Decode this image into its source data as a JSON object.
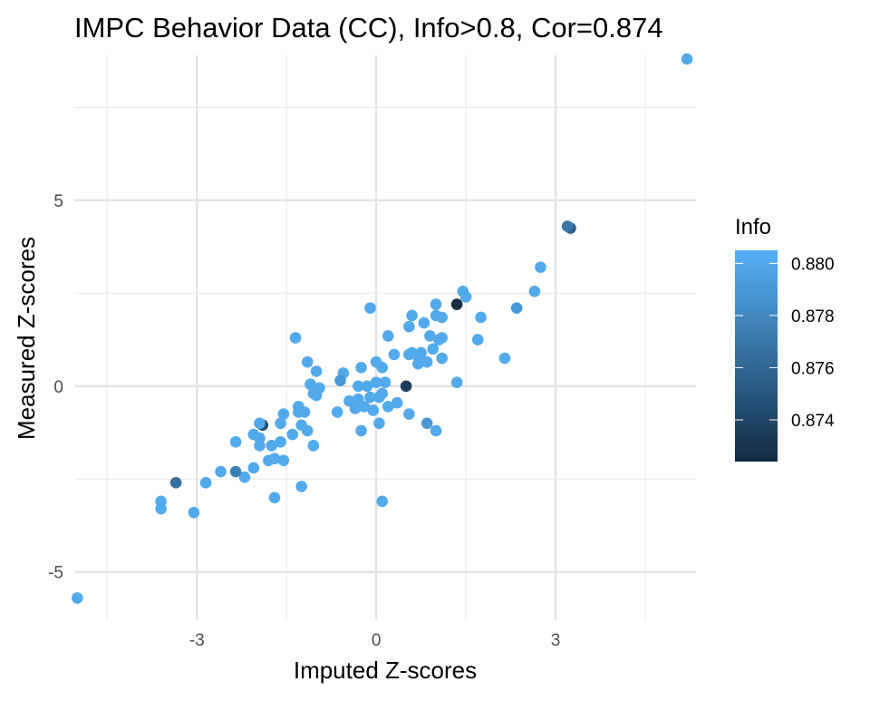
{
  "chart_data": {
    "type": "scatter",
    "title": "IMPC Behavior Data (CC), Info>0.8, Cor=0.874",
    "xlabel": "Imputed Z-scores",
    "ylabel": "Measured Z-scores",
    "xlim": [
      -5.05,
      5.35
    ],
    "ylim": [
      -6.3,
      8.9
    ],
    "x_ticks": [
      -3,
      0,
      3
    ],
    "x_minor_ticks": [
      -4.5,
      -1.5,
      1.5,
      4.5
    ],
    "y_ticks": [
      -5,
      0,
      5
    ],
    "y_minor_ticks": [
      -2.5,
      2.5,
      7.5
    ],
    "grid": true,
    "legend": {
      "title": "Info",
      "placement": "right",
      "type": "colorbar",
      "ticks": [
        0.874,
        0.876,
        0.878,
        0.88
      ],
      "range": [
        0.8724,
        0.8805
      ],
      "color_low": "#132B43",
      "color_high": "#56B1F7"
    },
    "points": [
      {
        "x": 5.2,
        "y": 8.8,
        "info": 0.88
      },
      {
        "x": 3.25,
        "y": 4.25,
        "info": 0.8755
      },
      {
        "x": 3.2,
        "y": 4.3,
        "info": 0.877
      },
      {
        "x": 2.75,
        "y": 3.2,
        "info": 0.88
      },
      {
        "x": 2.65,
        "y": 2.55,
        "info": 0.88
      },
      {
        "x": 2.35,
        "y": 2.1,
        "info": 0.879
      },
      {
        "x": 2.15,
        "y": 0.75,
        "info": 0.88
      },
      {
        "x": 1.75,
        "y": 1.85,
        "info": 0.88
      },
      {
        "x": 1.7,
        "y": 1.25,
        "info": 0.88
      },
      {
        "x": 1.5,
        "y": 2.4,
        "info": 0.88
      },
      {
        "x": 1.45,
        "y": 2.55,
        "info": 0.88
      },
      {
        "x": 1.35,
        "y": 2.2,
        "info": 0.8725
      },
      {
        "x": 1.35,
        "y": 0.1,
        "info": 0.88
      },
      {
        "x": 1.1,
        "y": 1.85,
        "info": 0.88
      },
      {
        "x": 1.1,
        "y": 1.3,
        "info": 0.88
      },
      {
        "x": 1.1,
        "y": 0.75,
        "info": 0.88
      },
      {
        "x": 1.05,
        "y": 1.25,
        "info": 0.88
      },
      {
        "x": 1.0,
        "y": 2.2,
        "info": 0.88
      },
      {
        "x": 1.0,
        "y": 1.9,
        "info": 0.88
      },
      {
        "x": 1.0,
        "y": -1.2,
        "info": 0.88
      },
      {
        "x": 0.95,
        "y": 1.0,
        "info": 0.88
      },
      {
        "x": 0.9,
        "y": 1.35,
        "info": 0.88
      },
      {
        "x": 0.85,
        "y": 0.65,
        "info": 0.88
      },
      {
        "x": 0.85,
        "y": -1.0,
        "info": 0.879
      },
      {
        "x": 0.8,
        "y": 1.7,
        "info": 0.88
      },
      {
        "x": 0.75,
        "y": 0.9,
        "info": 0.88
      },
      {
        "x": 0.7,
        "y": 0.8,
        "info": 0.88
      },
      {
        "x": 0.7,
        "y": 0.6,
        "info": 0.88
      },
      {
        "x": 0.6,
        "y": 1.9,
        "info": 0.88
      },
      {
        "x": 0.6,
        "y": 0.9,
        "info": 0.88
      },
      {
        "x": 0.55,
        "y": 1.6,
        "info": 0.88
      },
      {
        "x": 0.55,
        "y": 0.85,
        "info": 0.88
      },
      {
        "x": 0.55,
        "y": -0.75,
        "info": 0.88
      },
      {
        "x": 0.5,
        "y": 0.0,
        "info": 0.8735
      },
      {
        "x": 0.3,
        "y": 0.85,
        "info": 0.88
      },
      {
        "x": 0.35,
        "y": -0.45,
        "info": 0.88
      },
      {
        "x": 0.2,
        "y": 1.35,
        "info": 0.88
      },
      {
        "x": 0.2,
        "y": -0.55,
        "info": 0.88
      },
      {
        "x": 0.15,
        "y": 0.1,
        "info": 0.88
      },
      {
        "x": 0.1,
        "y": 0.5,
        "info": 0.88
      },
      {
        "x": 0.1,
        "y": -0.2,
        "info": 0.88
      },
      {
        "x": 0.05,
        "y": -1.0,
        "info": 0.88
      },
      {
        "x": 0.05,
        "y": -0.3,
        "info": 0.88
      },
      {
        "x": 0.0,
        "y": 0.65,
        "info": 0.88
      },
      {
        "x": 0.0,
        "y": 0.1,
        "info": 0.88
      },
      {
        "x": 0.1,
        "y": -3.1,
        "info": 0.88
      },
      {
        "x": -0.05,
        "y": -0.65,
        "info": 0.88
      },
      {
        "x": -0.1,
        "y": 2.1,
        "info": 0.88
      },
      {
        "x": -0.1,
        "y": -0.3,
        "info": 0.88
      },
      {
        "x": -0.15,
        "y": 0.0,
        "info": 0.88
      },
      {
        "x": -0.2,
        "y": -0.55,
        "info": 0.88
      },
      {
        "x": -0.25,
        "y": 0.5,
        "info": 0.88
      },
      {
        "x": -0.25,
        "y": -1.2,
        "info": 0.88
      },
      {
        "x": -0.3,
        "y": 0.0,
        "info": 0.88
      },
      {
        "x": -0.3,
        "y": -0.35,
        "info": 0.88
      },
      {
        "x": -0.35,
        "y": -0.6,
        "info": 0.88
      },
      {
        "x": -0.45,
        "y": -0.4,
        "info": 0.88
      },
      {
        "x": -0.55,
        "y": 0.35,
        "info": 0.88
      },
      {
        "x": -0.6,
        "y": 0.15,
        "info": 0.879
      },
      {
        "x": -0.65,
        "y": -0.7,
        "info": 0.88
      },
      {
        "x": -0.95,
        "y": -0.05,
        "info": 0.88
      },
      {
        "x": -1.0,
        "y": 0.4,
        "info": 0.88
      },
      {
        "x": -1.0,
        "y": -0.25,
        "info": 0.88
      },
      {
        "x": -1.05,
        "y": -0.2,
        "info": 0.88
      },
      {
        "x": -1.1,
        "y": 0.05,
        "info": 0.88
      },
      {
        "x": -1.15,
        "y": 0.65,
        "info": 0.88
      },
      {
        "x": -1.05,
        "y": -1.6,
        "info": 0.88
      },
      {
        "x": -1.15,
        "y": -1.2,
        "info": 0.88
      },
      {
        "x": -1.2,
        "y": -0.7,
        "info": 0.88
      },
      {
        "x": -1.25,
        "y": -1.05,
        "info": 0.88
      },
      {
        "x": -1.3,
        "y": -0.55,
        "info": 0.88
      },
      {
        "x": -1.35,
        "y": 1.3,
        "info": 0.88
      },
      {
        "x": -1.3,
        "y": -0.7,
        "info": 0.88
      },
      {
        "x": -1.25,
        "y": -2.7,
        "info": 0.88
      },
      {
        "x": -1.4,
        "y": -1.3,
        "info": 0.88
      },
      {
        "x": -1.55,
        "y": -0.75,
        "info": 0.88
      },
      {
        "x": -1.55,
        "y": -2.0,
        "info": 0.88
      },
      {
        "x": -1.6,
        "y": -1.0,
        "info": 0.88
      },
      {
        "x": -1.6,
        "y": -1.5,
        "info": 0.88
      },
      {
        "x": -1.7,
        "y": -1.95,
        "info": 0.88
      },
      {
        "x": -1.7,
        "y": -3.0,
        "info": 0.88
      },
      {
        "x": -1.75,
        "y": -1.6,
        "info": 0.88
      },
      {
        "x": -1.8,
        "y": -2.0,
        "info": 0.88
      },
      {
        "x": -1.9,
        "y": -1.05,
        "info": 0.8745
      },
      {
        "x": -1.95,
        "y": -1.0,
        "info": 0.88
      },
      {
        "x": -1.95,
        "y": -1.4,
        "info": 0.88
      },
      {
        "x": -1.95,
        "y": -1.6,
        "info": 0.88
      },
      {
        "x": -2.05,
        "y": -1.3,
        "info": 0.88
      },
      {
        "x": -2.05,
        "y": -2.2,
        "info": 0.88
      },
      {
        "x": -2.2,
        "y": -2.45,
        "info": 0.88
      },
      {
        "x": -2.35,
        "y": -2.3,
        "info": 0.8775
      },
      {
        "x": -2.35,
        "y": -1.5,
        "info": 0.88
      },
      {
        "x": -2.6,
        "y": -2.3,
        "info": 0.88
      },
      {
        "x": -2.85,
        "y": -2.6,
        "info": 0.88
      },
      {
        "x": -3.05,
        "y": -3.4,
        "info": 0.88
      },
      {
        "x": -3.35,
        "y": -2.6,
        "info": 0.8765
      },
      {
        "x": -3.6,
        "y": -3.1,
        "info": 0.88
      },
      {
        "x": -3.6,
        "y": -3.3,
        "info": 0.88
      },
      {
        "x": -5.0,
        "y": -5.7,
        "info": 0.88
      }
    ]
  }
}
